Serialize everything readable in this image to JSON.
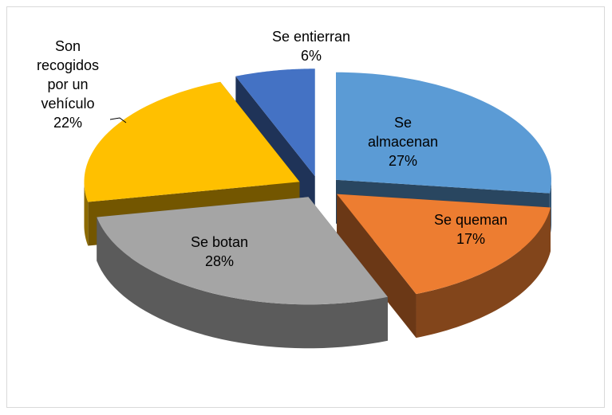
{
  "chart_data": {
    "type": "pie",
    "categories": [
      "Se almacenan",
      "Se queman",
      "Se botan",
      "Son recogidos por un vehículo",
      "Se entierran"
    ],
    "values": [
      27,
      17,
      28,
      22,
      6
    ],
    "value_labels": [
      "27%",
      "17%",
      "28%",
      "22%",
      "6%"
    ],
    "colors": [
      "#5b9bd5",
      "#ed7d31",
      "#a5a5a5",
      "#ffc000",
      "#4472c4"
    ]
  }
}
